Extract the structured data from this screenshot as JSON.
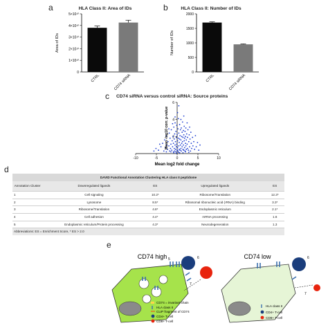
{
  "panels": {
    "a": {
      "letter": "a"
    },
    "b": {
      "letter": "b"
    },
    "c": {
      "letter": "c"
    },
    "d": {
      "letter": "d"
    },
    "e": {
      "letter": "e"
    }
  },
  "chart_data": [
    {
      "id": "a",
      "type": "bar",
      "title": "HLA Class II: Area of IDs",
      "ylabel": "Area of IDs",
      "categories": [
        "CTRL",
        "CD74 siRNA"
      ],
      "values": [
        38000000000.0,
        42500000000.0
      ],
      "errors": [
        1500000000.0,
        2000000000.0
      ],
      "colors": [
        "#0a0a0a",
        "#7a7a7a"
      ],
      "ylim": [
        0,
        50000000000.0
      ],
      "yticks": [
        0,
        10000000000.0,
        20000000000.0,
        30000000000.0,
        40000000000.0,
        50000000000.0
      ],
      "ytick_labels": [
        "0",
        "1×10¹⁰",
        "2×10¹⁰",
        "3×10¹⁰",
        "4×10¹⁰",
        "5×10¹⁰"
      ]
    },
    {
      "id": "b",
      "type": "bar",
      "title": "HLA Class II: Number of IDs",
      "ylabel": "Number of IDs",
      "categories": [
        "CTRL",
        "CD74 siRNA"
      ],
      "values": [
        1700,
        950
      ],
      "errors": [
        25,
        15
      ],
      "colors": [
        "#0a0a0a",
        "#7a7a7a"
      ],
      "ylim": [
        0,
        2000
      ],
      "yticks": [
        0,
        500,
        1000,
        1500,
        2000
      ],
      "ytick_labels": [
        "0",
        "500",
        "1000",
        "1500",
        "2000"
      ]
    },
    {
      "id": "c",
      "type": "scatter",
      "title": "CD74 siRNA versus control siRNA: Source proteins",
      "xlabel": "Mean log2 fold change",
      "ylabel": "Mean -log10 corr. p-value",
      "xlim": [
        -10,
        10
      ],
      "ylim": [
        0,
        6
      ],
      "xticks": [
        -10,
        -5,
        0,
        5,
        10
      ],
      "xtick_labels": [
        "-10",
        "-5",
        "0",
        "5",
        "10"
      ],
      "yticks": [
        2,
        4,
        6
      ],
      "ytick_labels": [
        "2",
        "4",
        "6"
      ],
      "color": "#1f3fd0",
      "points": [
        [
          -4.5,
          0.4
        ],
        [
          -3.9,
          0.8
        ],
        [
          -3.5,
          1.2
        ],
        [
          -3.2,
          0.3
        ],
        [
          -3.0,
          1.6
        ],
        [
          -2.8,
          0.7
        ],
        [
          -2.6,
          2.1
        ],
        [
          -2.5,
          1.0
        ],
        [
          -2.3,
          0.5
        ],
        [
          -2.2,
          1.4
        ],
        [
          -2.0,
          0.9
        ],
        [
          -1.9,
          2.4
        ],
        [
          -1.8,
          0.3
        ],
        [
          -1.7,
          1.8
        ],
        [
          -1.6,
          0.6
        ],
        [
          -1.5,
          1.1
        ],
        [
          -1.4,
          2.8
        ],
        [
          -1.3,
          0.4
        ],
        [
          -1.2,
          1.5
        ],
        [
          -1.1,
          0.8
        ],
        [
          -1.0,
          2.0
        ],
        [
          -0.9,
          0.2
        ],
        [
          -0.9,
          1.2
        ],
        [
          -0.8,
          3.1
        ],
        [
          -0.7,
          0.6
        ],
        [
          -0.7,
          1.7
        ],
        [
          -0.6,
          0.3
        ],
        [
          -0.6,
          2.3
        ],
        [
          -0.5,
          1.0
        ],
        [
          -0.5,
          3.6
        ],
        [
          -0.4,
          0.5
        ],
        [
          -0.4,
          1.4
        ],
        [
          -0.3,
          2.6
        ],
        [
          -0.3,
          0.2
        ],
        [
          -0.2,
          1.9
        ],
        [
          -0.2,
          0.8
        ],
        [
          -0.1,
          3.3
        ],
        [
          -0.1,
          1.1
        ],
        [
          0.0,
          0.4
        ],
        [
          0.0,
          2.2
        ],
        [
          0.1,
          1.5
        ],
        [
          0.1,
          0.7
        ],
        [
          0.2,
          2.9
        ],
        [
          0.2,
          0.3
        ],
        [
          0.3,
          1.8
        ],
        [
          0.3,
          4.1
        ],
        [
          0.4,
          0.9
        ],
        [
          0.4,
          2.4
        ],
        [
          0.5,
          1.3
        ],
        [
          0.5,
          0.5
        ],
        [
          0.6,
          3.4
        ],
        [
          0.6,
          1.7
        ],
        [
          0.7,
          0.4
        ],
        [
          0.7,
          2.1
        ],
        [
          0.8,
          1.0
        ],
        [
          0.8,
          2.8
        ],
        [
          0.9,
          0.6
        ],
        [
          0.9,
          1.6
        ],
        [
          1.0,
          3.0
        ],
        [
          1.0,
          0.3
        ],
        [
          1.1,
          2.0
        ],
        [
          1.1,
          1.2
        ],
        [
          1.2,
          0.8
        ],
        [
          1.2,
          2.5
        ],
        [
          1.3,
          1.4
        ],
        [
          1.3,
          3.7
        ],
        [
          1.4,
          0.5
        ],
        [
          1.4,
          1.9
        ],
        [
          1.5,
          2.7
        ],
        [
          1.5,
          1.0
        ],
        [
          1.6,
          0.4
        ],
        [
          1.6,
          2.2
        ],
        [
          1.7,
          1.5
        ],
        [
          1.7,
          3.2
        ],
        [
          1.8,
          0.7
        ],
        [
          1.8,
          1.8
        ],
        [
          1.9,
          2.6
        ],
        [
          1.9,
          0.3
        ],
        [
          2.0,
          1.2
        ],
        [
          2.0,
          2.0
        ],
        [
          2.1,
          0.9
        ],
        [
          2.1,
          3.0
        ],
        [
          2.2,
          1.6
        ],
        [
          2.2,
          0.5
        ],
        [
          2.3,
          2.3
        ],
        [
          2.4,
          1.1
        ],
        [
          2.5,
          0.6
        ],
        [
          2.5,
          1.9
        ],
        [
          2.6,
          2.8
        ],
        [
          2.7,
          0.4
        ],
        [
          2.8,
          1.4
        ],
        [
          2.9,
          2.2
        ],
        [
          3.0,
          0.8
        ],
        [
          3.1,
          1.7
        ],
        [
          3.2,
          0.3
        ],
        [
          3.3,
          2.5
        ],
        [
          3.4,
          1.2
        ],
        [
          3.5,
          0.6
        ],
        [
          3.7,
          1.9
        ],
        [
          3.8,
          0.9
        ],
        [
          4.0,
          1.4
        ],
        [
          4.2,
          0.5
        ],
        [
          4.4,
          2.1
        ],
        [
          4.6,
          0.8
        ],
        [
          4.9,
          1.3
        ],
        [
          5.2,
          0.4
        ],
        [
          5.5,
          1.0
        ],
        [
          -5.1,
          0.6
        ],
        [
          -5.6,
          0.3
        ],
        [
          -4.2,
          1.1
        ],
        [
          0.4,
          5.6
        ],
        [
          0.1,
          4.8
        ],
        [
          -0.5,
          4.3
        ],
        [
          0.9,
          4.0
        ],
        [
          1.6,
          4.4
        ],
        [
          -1.1,
          3.5
        ],
        [
          2.4,
          3.6
        ],
        [
          -2.0,
          2.9
        ],
        [
          3.0,
          3.1
        ],
        [
          0.6,
          0.1
        ],
        [
          -0.8,
          0.1
        ],
        [
          1.4,
          0.1
        ],
        [
          -1.5,
          0.2
        ],
        [
          2.0,
          0.2
        ],
        [
          -0.2,
          0.05
        ],
        [
          0.3,
          0.15
        ],
        [
          -2.6,
          0.2
        ],
        [
          2.8,
          0.15
        ]
      ]
    }
  ],
  "table": {
    "title": "DAVID Functional Annotation Clustering HLA class II peptidome",
    "headers": [
      "Annotation Cluster",
      "Downregulated ligands",
      "ES",
      "Upregulated ligands",
      "ES"
    ],
    "rows": [
      [
        "1",
        "Cell signaling",
        "10.2*",
        "Ribosome/Translation",
        "12.3*"
      ],
      [
        "2",
        "Lysosome",
        "8.5*",
        "Ribosomal ribonucleic acid (rRNA) binding",
        "3.3*"
      ],
      [
        "3",
        "Ribosome/Translation",
        "4.8*",
        "Endoplasmic reticulum",
        "2.1*"
      ],
      [
        "4",
        "Cell adhesion",
        "4.4*",
        "mRNA processing",
        "1.6"
      ],
      [
        "5",
        "Endoplasmic reticulum/Protein processing",
        "4.3*",
        "Neurodegeneration",
        "1.3"
      ]
    ],
    "footnote": "Abbreviations: ES = Enrichment Score, * ES > 2.0"
  },
  "panel_e": {
    "left_title": "CD74 high",
    "right_title": "CD74 low",
    "left_legend": [
      "CD74 = invariant chain",
      "HLA class II",
      "CLIP fragment of CD74",
      "CD4+ T-cell",
      "CD8+ T-cell"
    ],
    "right_legend": [
      "HLA class II",
      "CD4+ T-cell",
      "CD8+ T-cell"
    ],
    "labels": [
      "5",
      "6",
      "7",
      "6",
      "7"
    ],
    "colors": {
      "cell_high": "#a6e34b",
      "cell_low": "#e6f5d6",
      "cd4": "#1a3d7c",
      "cd8": "#e8240e",
      "nucleus": "#8a8a8a",
      "hla": "#5b8fc9"
    }
  }
}
